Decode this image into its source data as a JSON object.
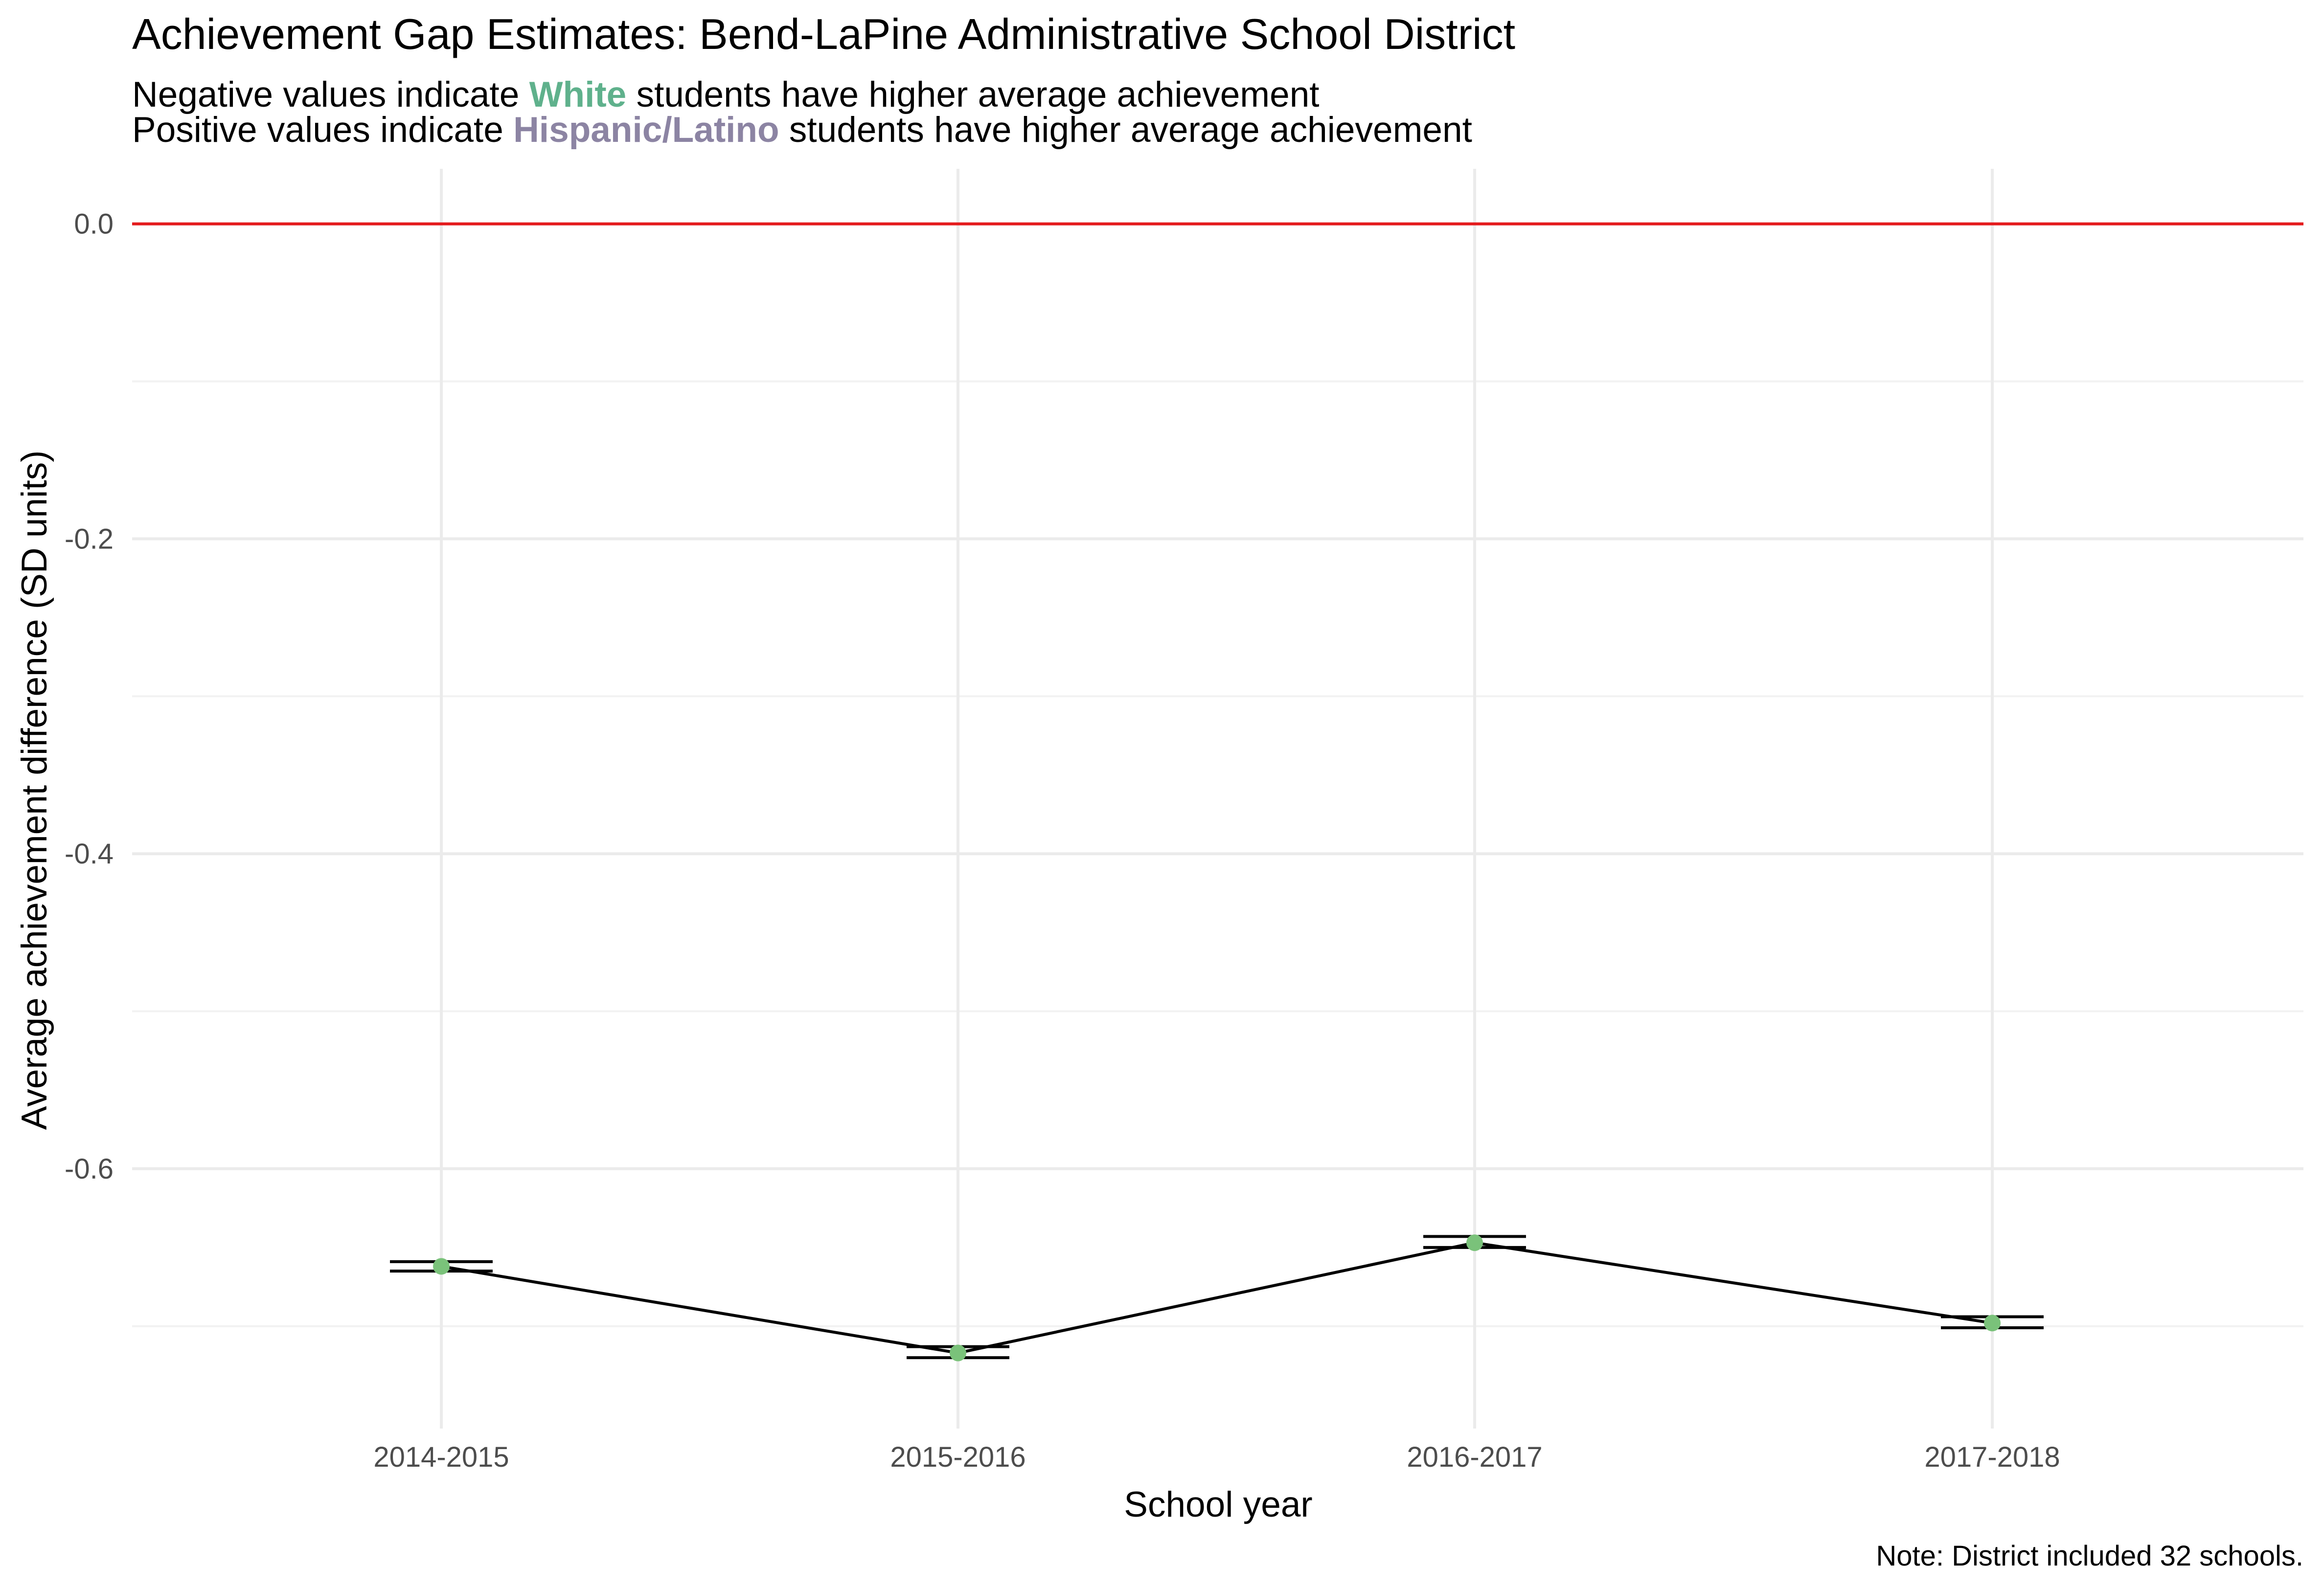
{
  "chart_data": {
    "type": "line",
    "title": "Achievement Gap Estimates: Bend-LaPine Administrative School District",
    "subtitle_lines": [
      {
        "before": "Negative values indicate ",
        "highlight": "White",
        "after": " students have higher average achievement",
        "highlight_color": "#5fb18c"
      },
      {
        "before": "Positive values indicate ",
        "highlight": "Hispanic/Latino",
        "after": " students have higher average achievement",
        "highlight_color": "#8c84a3"
      }
    ],
    "xlabel": "School year",
    "ylabel": "Average achievement difference (SD units)",
    "caption": "Note: District included 32 schools.",
    "categories": [
      "2014-2015",
      "2015-2016",
      "2016-2017",
      "2017-2018"
    ],
    "series": [
      {
        "values": [
          -0.662,
          -0.717,
          -0.647,
          -0.698
        ],
        "ci_low": [
          -0.665,
          -0.72,
          -0.65,
          -0.701
        ],
        "ci_high": [
          -0.659,
          -0.713,
          -0.643,
          -0.694
        ]
      }
    ],
    "ylim": [
      -0.765,
      0.035
    ],
    "yticks": [
      0.0,
      -0.2,
      -0.4,
      -0.6
    ],
    "ytick_labels": [
      "0.0",
      "-0.2",
      "-0.4",
      "-0.6"
    ],
    "reference_line": 0.0,
    "grid": true,
    "legend": "none",
    "colors": {
      "point": "#7ac27a",
      "line": "#000000",
      "reference_line": "#e41a1c",
      "white_highlight": "#5fb18c",
      "hispanic_highlight": "#8c84a3"
    }
  }
}
